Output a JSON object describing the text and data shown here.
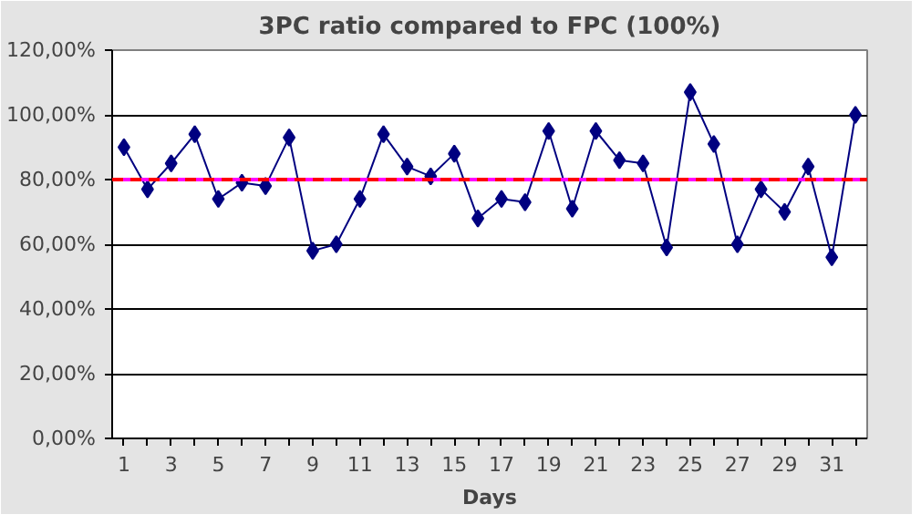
{
  "chart_data": {
    "type": "line",
    "title": "3PC ratio compared to FPC (100%)",
    "xlabel": "Days",
    "x": [
      1,
      2,
      3,
      4,
      5,
      6,
      7,
      8,
      9,
      10,
      11,
      12,
      13,
      14,
      15,
      16,
      17,
      18,
      19,
      20,
      21,
      22,
      23,
      24,
      25,
      26,
      27,
      28,
      29,
      30,
      31,
      32
    ],
    "series": [
      {
        "color": "#000080",
        "values": [
          90,
          77,
          85,
          94,
          74,
          79,
          78,
          93,
          58,
          60,
          74,
          94,
          84,
          81,
          88,
          68,
          74,
          73,
          95,
          71,
          95,
          86,
          85,
          59,
          107,
          91,
          60,
          77,
          70,
          84,
          56,
          100
        ]
      }
    ],
    "xlim": [
      0.5,
      32.5
    ],
    "xticks": [
      1,
      {
        "value": 2,
        "label": null
      },
      3,
      {
        "value": 4,
        "label": null
      },
      5,
      {
        "value": 6,
        "label": null
      },
      7,
      {
        "value": 8,
        "label": null
      },
      9,
      {
        "value": 10,
        "label": null
      },
      11,
      {
        "value": 12,
        "label": null
      },
      13,
      {
        "value": 14,
        "label": null
      },
      15,
      {
        "value": 16,
        "label": null
      },
      17,
      {
        "value": 18,
        "label": null
      },
      19,
      {
        "value": 20,
        "label": null
      },
      21,
      {
        "value": 22,
        "label": null
      },
      23,
      {
        "value": 24,
        "label": null
      },
      25,
      {
        "value": 26,
        "label": null
      },
      27,
      {
        "value": 28,
        "label": null
      },
      29,
      {
        "value": 30,
        "label": null
      },
      31,
      {
        "value": 32,
        "label": null
      }
    ],
    "ylim": [
      0,
      120
    ],
    "yticks": [
      {
        "value": 0,
        "label": "0,00%"
      },
      {
        "value": 20,
        "label": "20,00%"
      },
      {
        "value": 40,
        "label": "40,00%"
      },
      {
        "value": 60,
        "label": "60,00%"
      },
      {
        "value": 80,
        "label": "80,00%"
      },
      {
        "value": 100,
        "label": "100,00%"
      },
      {
        "value": 120,
        "label": "120,00%"
      }
    ],
    "ref_lines": [
      {
        "axis": "y",
        "value": 80,
        "color": "#ff00ff",
        "line_style": "solid"
      },
      {
        "axis": "y",
        "value": 80,
        "color": "#ff0000",
        "line_style": "dashed"
      }
    ],
    "grid": "y",
    "marker": "diamond",
    "line_style": "solid"
  }
}
